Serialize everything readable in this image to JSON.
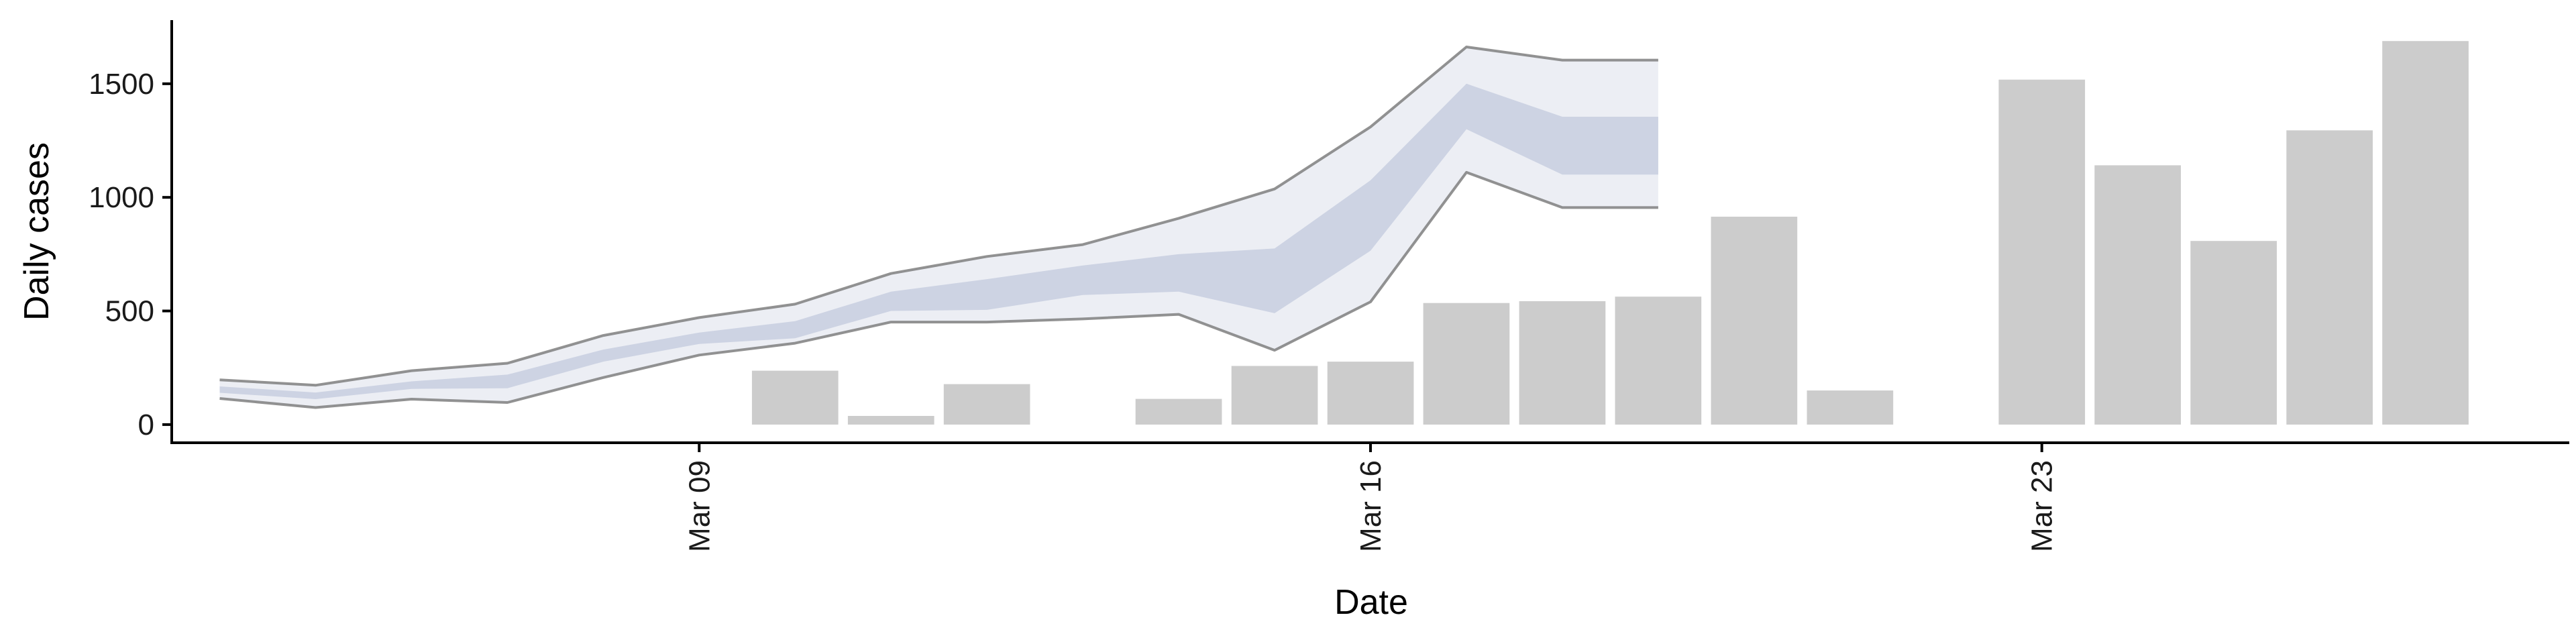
{
  "chart_data": {
    "type": "bar",
    "title": "",
    "xlabel": "Date",
    "ylabel": "Daily cases",
    "x_ticks": [
      {
        "date": "2020-03-09",
        "label": "Mar 09"
      },
      {
        "date": "2020-03-16",
        "label": "Mar 16"
      },
      {
        "date": "2020-03-23",
        "label": "Mar 23"
      }
    ],
    "y_ticks": [
      0,
      500,
      1000,
      1500
    ],
    "ylim": [
      -80,
      1780
    ],
    "xlim": [
      "2020-03-03T12:00",
      "2020-03-28T12:00"
    ],
    "grid": false,
    "legend": "none",
    "colors": {
      "bars": "#cccccc",
      "band_outer": "#eceef4",
      "band_inner": "#cdd3e3",
      "band_line": "#7f7f7f",
      "axis": "#000000"
    },
    "observed": [
      {
        "date": "2020-03-10",
        "value": 237
      },
      {
        "date": "2020-03-11",
        "value": 38
      },
      {
        "date": "2020-03-12",
        "value": 178
      },
      {
        "date": "2020-03-14",
        "value": 113
      },
      {
        "date": "2020-03-15",
        "value": 258
      },
      {
        "date": "2020-03-16",
        "value": 277
      },
      {
        "date": "2020-03-17",
        "value": 535
      },
      {
        "date": "2020-03-18",
        "value": 543
      },
      {
        "date": "2020-03-19",
        "value": 563
      },
      {
        "date": "2020-03-20",
        "value": 915
      },
      {
        "date": "2020-03-21",
        "value": 150
      },
      {
        "date": "2020-03-23",
        "value": 1518
      },
      {
        "date": "2020-03-24",
        "value": 1141
      },
      {
        "date": "2020-03-25",
        "value": 808
      },
      {
        "date": "2020-03-26",
        "value": 1295
      },
      {
        "date": "2020-03-27",
        "value": 1688
      }
    ],
    "estimate": {
      "dates": [
        "2020-03-04",
        "2020-03-05",
        "2020-03-06",
        "2020-03-07",
        "2020-03-08",
        "2020-03-09",
        "2020-03-10",
        "2020-03-11",
        "2020-03-12",
        "2020-03-13",
        "2020-03-14",
        "2020-03-15",
        "2020-03-16",
        "2020-03-17",
        "2020-03-18",
        "2020-03-19"
      ],
      "outer_upper": [
        197,
        173,
        237,
        270,
        392,
        471,
        530,
        665,
        740,
        792,
        908,
        1037,
        1310,
        1662,
        1604,
        1604
      ],
      "inner_upper": [
        168,
        141,
        190,
        220,
        330,
        405,
        455,
        585,
        640,
        700,
        750,
        775,
        1075,
        1500,
        1355,
        1355
      ],
      "inner_lower": [
        140,
        112,
        157,
        160,
        277,
        355,
        380,
        500,
        505,
        570,
        585,
        490,
        765,
        1300,
        1100,
        1100
      ],
      "outer_lower": [
        115,
        75,
        112,
        97,
        207,
        306,
        358,
        451,
        451,
        465,
        485,
        327,
        540,
        1110,
        955,
        955
      ]
    }
  }
}
